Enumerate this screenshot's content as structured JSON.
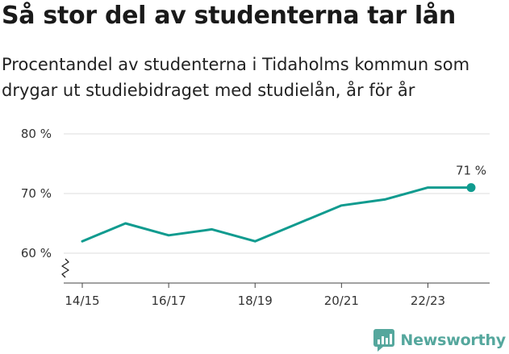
{
  "header": {
    "title": "Så stor del av studenterna tar lån",
    "subtitle": "Procentandel av studenterna i Tidaholms kommun som drygar ut studiebidraget med studielån, år för år"
  },
  "chart_data": {
    "type": "line",
    "title": "Så stor del av studenterna tar lån",
    "subtitle": "Procentandel av studenterna i Tidaholms kommun som drygar ut studiebidraget med studielån, år för år",
    "xlabel": "",
    "ylabel": "",
    "x": [
      "14/15",
      "15/16",
      "16/17",
      "17/18",
      "18/19",
      "19/20",
      "20/21",
      "21/22",
      "22/23",
      "23/24"
    ],
    "x_tick_labels": [
      "14/15",
      "16/17",
      "18/19",
      "20/21",
      "22/23"
    ],
    "y_tick_values": [
      60,
      70,
      80
    ],
    "y_tick_labels": [
      "60 %",
      "70 %",
      "80 %"
    ],
    "ylim": [
      55,
      80
    ],
    "axis_break": true,
    "grid": true,
    "series": [
      {
        "values": [
          62,
          65,
          63,
          64,
          62,
          65,
          68,
          69,
          71,
          71
        ]
      }
    ],
    "end_label": "71 %",
    "line_color": "#109b8f"
  },
  "brand": {
    "name": "Newsworthy",
    "icon": "newsworthy-logo-icon",
    "color": "#55a79d"
  }
}
